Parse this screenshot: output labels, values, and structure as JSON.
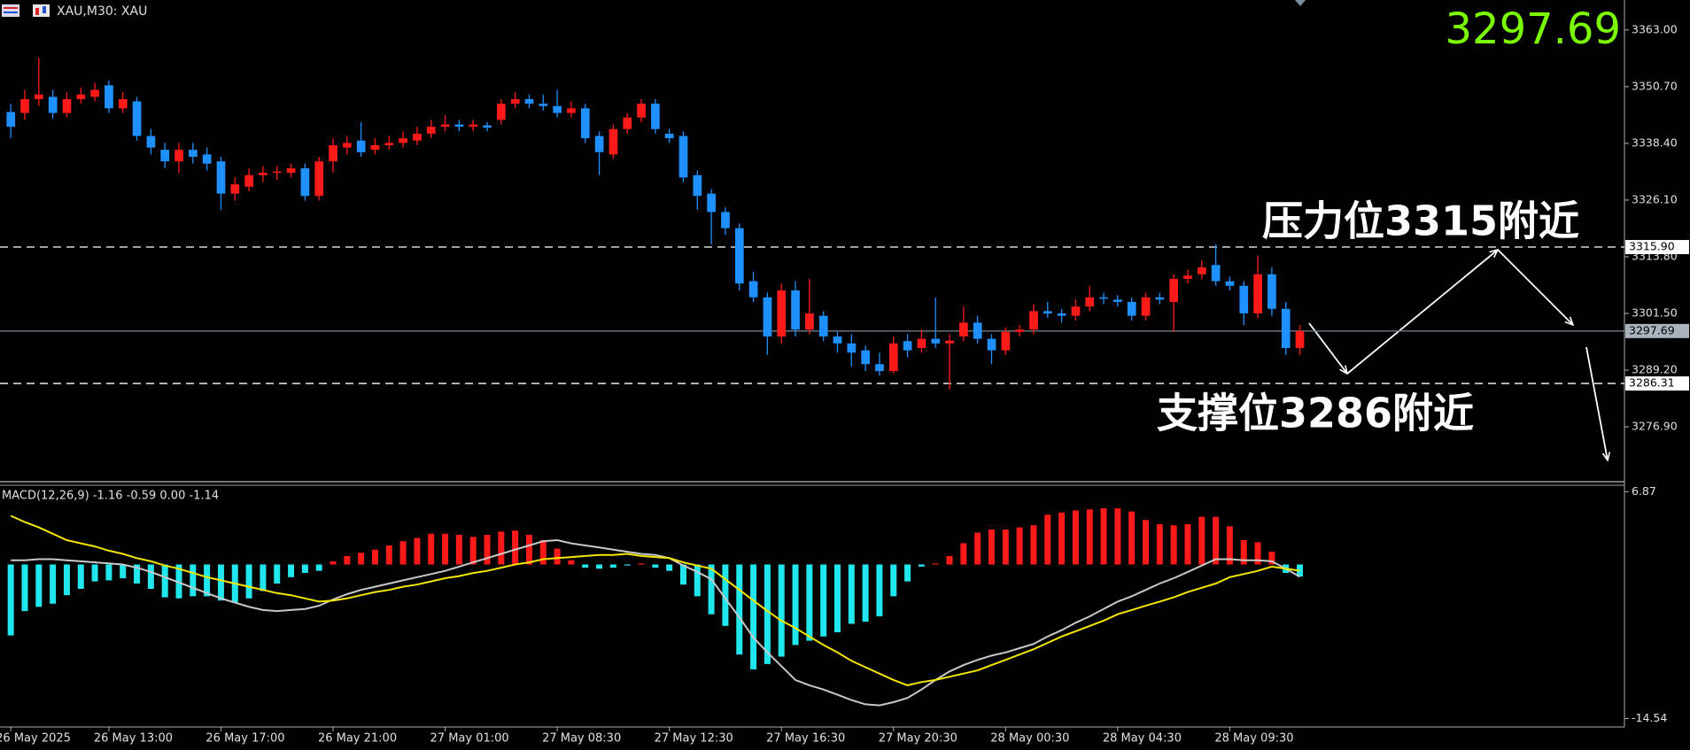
{
  "header": {
    "title": "XAU,M30: XAU"
  },
  "chart_data": [
    {
      "type": "candlestick",
      "categories": [
        "26 May 2025",
        null,
        null,
        null,
        null,
        null,
        null,
        "26 May 13:00",
        null,
        null,
        null,
        null,
        null,
        null,
        null,
        "26 May 17:00",
        null,
        null,
        null,
        null,
        null,
        null,
        null,
        "26 May 21:00",
        null,
        null,
        null,
        null,
        null,
        null,
        null,
        "27 May 01:00",
        null,
        null,
        null,
        null,
        null,
        null,
        null,
        "27 May 08:30",
        null,
        null,
        null,
        null,
        null,
        null,
        null,
        "27 May 12:30",
        null,
        null,
        null,
        null,
        null,
        null,
        null,
        "27 May 16:30",
        null,
        null,
        null,
        null,
        null,
        null,
        null,
        "27 May 20:30",
        null,
        null,
        null,
        null,
        null,
        null,
        null,
        "28 May 00:30",
        null,
        null,
        null,
        null,
        null,
        null,
        null,
        "28 May 04:30",
        null,
        null,
        null,
        null,
        null,
        null,
        null,
        "28 May 09:30",
        null,
        null,
        null,
        null,
        null
      ],
      "open": [
        3345.2,
        3345.0,
        3348.0,
        3348.5,
        3345.0,
        3348.0,
        3348.5,
        3351.0,
        3346.0,
        3347.5,
        3340.0,
        3337.0,
        3334.5,
        3337.0,
        3336.0,
        3334.5,
        3327.5,
        3329.0,
        3331.5,
        3332.0,
        3332.0,
        3333.0,
        3327.0,
        3334.5,
        3337.5,
        3339.0,
        3337.0,
        3338.0,
        3338.5,
        3339.0,
        3340.5,
        3342.0,
        3342.5,
        3342.0,
        3342.3,
        3343.5,
        3347.0,
        3348.0,
        3347.0,
        3346.5,
        3345.0,
        3346.0,
        3340.0,
        3336.0,
        3341.5,
        3344.0,
        3347.0,
        3340.5,
        3340.0,
        3331.5,
        3327.5,
        3323.5,
        3320.0,
        3308.5,
        3305.0,
        3296.5,
        3306.5,
        3298.0,
        3301.0,
        3296.5,
        3295.0,
        3293.5,
        3290.5,
        3289.0,
        3295.5,
        3294.0,
        3296.0,
        3295.0,
        3296.5,
        3299.5,
        3296.0,
        3293.5,
        3297.5,
        3298.0,
        3302.0,
        3301.5,
        3301.0,
        3303.0,
        3305.0,
        3304.5,
        3304.0,
        3301.0,
        3305.0,
        3304.0,
        3309.0,
        3310.0,
        3312.0,
        3308.5,
        3307.5,
        3301.5,
        3310.0,
        3302.5,
        3294.0
      ],
      "high": [
        3347.0,
        3350.0,
        3357.0,
        3350.0,
        3349.5,
        3350.5,
        3351.5,
        3352.0,
        3349.5,
        3348.5,
        3341.5,
        3338.5,
        3338.5,
        3338.5,
        3337.5,
        3335.5,
        3331.0,
        3333.0,
        3333.5,
        3333.5,
        3334.0,
        3334.0,
        3335.5,
        3339.5,
        3340.0,
        3343.0,
        3339.5,
        3340.0,
        3341.0,
        3342.0,
        3343.5,
        3344.5,
        3343.5,
        3343.5,
        3343.0,
        3348.0,
        3349.5,
        3349.0,
        3349.0,
        3350.0,
        3347.5,
        3347.0,
        3341.0,
        3342.5,
        3345.0,
        3348.0,
        3348.0,
        3341.5,
        3341.0,
        3332.5,
        3328.5,
        3324.5,
        3321.0,
        3310.5,
        3306.0,
        3308.0,
        3308.5,
        3309.0,
        3302.0,
        3297.5,
        3297.0,
        3294.5,
        3293.0,
        3296.5,
        3297.0,
        3298.0,
        3305.0,
        3297.0,
        3303.0,
        3301.0,
        3297.0,
        3298.5,
        3299.0,
        3303.5,
        3304.0,
        3302.5,
        3304.5,
        3307.5,
        3306.0,
        3305.5,
        3305.0,
        3306.0,
        3306.0,
        3310.0,
        3311.0,
        3313.0,
        3316.5,
        3309.5,
        3308.5,
        3314.0,
        3311.5,
        3304.0,
        3299.0
      ],
      "low": [
        3339.5,
        3343.5,
        3346.5,
        3343.8,
        3344.0,
        3347.0,
        3347.5,
        3345.0,
        3345.0,
        3339.0,
        3336.0,
        3333.0,
        3332.0,
        3334.0,
        3332.5,
        3324.0,
        3326.0,
        3328.0,
        3330.0,
        3330.5,
        3331.0,
        3326.0,
        3326.0,
        3332.0,
        3336.0,
        3335.5,
        3336.0,
        3337.0,
        3337.5,
        3338.0,
        3339.5,
        3341.0,
        3341.0,
        3341.0,
        3341.0,
        3342.5,
        3346.0,
        3346.0,
        3345.5,
        3344.0,
        3344.0,
        3338.5,
        3331.5,
        3335.0,
        3340.5,
        3343.0,
        3340.5,
        3338.5,
        3330.0,
        3324.0,
        3316.5,
        3318.5,
        3306.5,
        3304.0,
        3292.5,
        3295.0,
        3296.5,
        3297.0,
        3295.5,
        3293.0,
        3290.0,
        3289.0,
        3288.0,
        3288.5,
        3292.0,
        3293.0,
        3294.0,
        3285.0,
        3295.5,
        3295.0,
        3290.5,
        3292.5,
        3296.5,
        3297.0,
        3300.5,
        3299.5,
        3300.0,
        3302.0,
        3303.5,
        3303.0,
        3300.0,
        3300.0,
        3303.5,
        3297.5,
        3308.0,
        3309.0,
        3307.5,
        3306.5,
        3299.0,
        3300.5,
        3301.0,
        3292.5,
        3292.5
      ],
      "close": [
        3342.0,
        3348.0,
        3349.0,
        3345.0,
        3348.0,
        3349.0,
        3350.0,
        3346.0,
        3348.0,
        3340.0,
        3337.5,
        3334.5,
        3337.0,
        3335.5,
        3334.0,
        3327.5,
        3329.5,
        3331.5,
        3332.0,
        3332.3,
        3333.0,
        3327.0,
        3334.5,
        3338.0,
        3338.5,
        3336.5,
        3338.0,
        3338.5,
        3339.5,
        3340.5,
        3342.0,
        3342.5,
        3342.0,
        3342.5,
        3341.8,
        3347.0,
        3348.0,
        3347.0,
        3346.5,
        3345.0,
        3346.0,
        3339.5,
        3336.5,
        3341.5,
        3344.0,
        3347.0,
        3341.5,
        3339.5,
        3331.0,
        3327.0,
        3323.5,
        3320.0,
        3308.0,
        3305.0,
        3296.5,
        3306.5,
        3298.0,
        3301.5,
        3296.5,
        3295.0,
        3293.0,
        3290.5,
        3289.0,
        3295.0,
        3293.5,
        3296.0,
        3295.0,
        3295.6,
        3299.5,
        3296.0,
        3293.5,
        3297.5,
        3298.0,
        3302.0,
        3301.5,
        3301.0,
        3303.0,
        3305.0,
        3304.7,
        3304.0,
        3301.0,
        3305.0,
        3304.5,
        3309.0,
        3309.7,
        3311.5,
        3308.5,
        3307.5,
        3301.5,
        3310.0,
        3302.5,
        3294.0,
        3297.69
      ],
      "up_color": "#ff1a1a",
      "down_color": "#1e90ff",
      "ylim": [
        3265.0,
        3369.5
      ],
      "yticks": [
        {
          "value": 3363.0,
          "label": "3363.00"
        },
        {
          "value": 3350.7,
          "label": "3350.70"
        },
        {
          "value": 3338.4,
          "label": "3338.40"
        },
        {
          "value": 3326.1,
          "label": "3326.10"
        },
        {
          "value": 3313.8,
          "label": "3313.80"
        },
        {
          "value": 3301.5,
          "label": "3301.50"
        },
        {
          "value": 3289.2,
          "label": "3289.20"
        },
        {
          "value": 3276.9,
          "label": "3276.90"
        }
      ],
      "hlines": [
        {
          "value": 3315.9,
          "label": "3315.90",
          "style": "dashed",
          "color": "#ffffff",
          "label_bg": "#ffffff"
        },
        {
          "value": 3297.69,
          "label": "3297.69",
          "style": "solid",
          "color": "#6b7b8c",
          "label_bg": "#a9b2bd"
        },
        {
          "value": 3286.31,
          "label": "3286.31",
          "style": "dashed",
          "color": "#ffffff",
          "label_bg": "#ffffff"
        }
      ],
      "price_color": "#7cfc00",
      "annotations": [
        "压力位3315附近",
        "支撑位3286附近"
      ]
    },
    {
      "type": "macd",
      "title": "MACD(12,26,9) -1.16 -0.59 0.00 -1.14",
      "ylim": [
        -15.34,
        7.48
      ],
      "yticks": [
        6.87,
        -14.54
      ],
      "series": [
        {
          "style": "histogram",
          "positive_color": "#ff1a1a",
          "negative_color": "#22e6ee",
          "values": [
            -6.7,
            -4.4,
            -4.0,
            -3.7,
            -2.9,
            -2.3,
            -1.6,
            -1.5,
            -1.3,
            -1.8,
            -2.3,
            -3.1,
            -3.2,
            -3.0,
            -3.0,
            -3.4,
            -3.6,
            -3.2,
            -2.5,
            -1.8,
            -1.2,
            -0.8,
            -0.6,
            0.3,
            0.8,
            1.1,
            1.4,
            1.8,
            2.2,
            2.5,
            2.9,
            2.9,
            2.8,
            2.6,
            2.8,
            3.1,
            3.2,
            2.8,
            2.3,
            1.5,
            0.4,
            -0.3,
            -0.4,
            -0.3,
            -0.1,
            0.1,
            -0.3,
            -0.6,
            -1.9,
            -3.0,
            -4.7,
            -5.8,
            -8.5,
            -9.9,
            -9.4,
            -8.7,
            -7.6,
            -7.2,
            -6.8,
            -6.4,
            -5.6,
            -5.4,
            -4.9,
            -3.0,
            -1.6,
            -0.2,
            0.1,
            0.8,
            2.0,
            3.0,
            3.3,
            3.3,
            3.5,
            3.7,
            4.7,
            4.9,
            5.1,
            5.2,
            5.3,
            5.3,
            5.0,
            4.2,
            3.8,
            3.7,
            3.8,
            4.5,
            4.5,
            3.6,
            2.3,
            2.1,
            1.2,
            -0.8,
            -1.14
          ]
        },
        {
          "style": "line",
          "color": "#c8c8c8",
          "values": [
            0.4,
            0.4,
            0.5,
            0.5,
            0.4,
            0.3,
            0.2,
            0.1,
            0.0,
            -0.3,
            -0.7,
            -1.2,
            -1.7,
            -2.2,
            -2.7,
            -3.2,
            -3.6,
            -4.0,
            -4.3,
            -4.4,
            -4.3,
            -4.2,
            -3.9,
            -3.3,
            -2.8,
            -2.4,
            -2.1,
            -1.8,
            -1.5,
            -1.2,
            -0.9,
            -0.6,
            -0.2,
            0.2,
            0.6,
            1.0,
            1.4,
            1.8,
            2.2,
            2.3,
            2.0,
            1.8,
            1.6,
            1.4,
            1.2,
            1.0,
            0.9,
            0.6,
            -0.1,
            -0.7,
            -1.4,
            -3.2,
            -5.0,
            -6.9,
            -8.3,
            -9.6,
            -10.9,
            -11.4,
            -11.8,
            -12.3,
            -12.8,
            -13.2,
            -13.3,
            -13.0,
            -12.6,
            -11.8,
            -10.9,
            -10.1,
            -9.5,
            -9.0,
            -8.6,
            -8.3,
            -7.9,
            -7.5,
            -6.8,
            -6.2,
            -5.5,
            -4.9,
            -4.2,
            -3.5,
            -3.0,
            -2.4,
            -1.8,
            -1.3,
            -0.7,
            -0.1,
            0.5,
            0.5,
            0.4,
            0.4,
            0.3,
            -0.4,
            -1.16
          ]
        },
        {
          "style": "line",
          "color": "#f5e600",
          "values": [
            4.6,
            4.0,
            3.5,
            2.9,
            2.3,
            2.0,
            1.7,
            1.3,
            1.0,
            0.6,
            0.3,
            -0.1,
            -0.4,
            -0.8,
            -1.2,
            -1.5,
            -1.8,
            -2.1,
            -2.4,
            -2.7,
            -2.9,
            -3.2,
            -3.5,
            -3.4,
            -3.2,
            -2.9,
            -2.6,
            -2.4,
            -2.1,
            -1.9,
            -1.6,
            -1.3,
            -1.1,
            -0.8,
            -0.6,
            -0.3,
            0.0,
            0.2,
            0.5,
            0.6,
            0.7,
            0.8,
            0.9,
            0.9,
            1.0,
            0.8,
            0.7,
            0.6,
            0.2,
            -0.1,
            -0.4,
            -1.4,
            -2.4,
            -3.4,
            -4.4,
            -5.3,
            -6.0,
            -6.8,
            -7.6,
            -8.3,
            -9.1,
            -9.7,
            -10.3,
            -10.9,
            -11.4,
            -11.1,
            -10.9,
            -10.6,
            -10.3,
            -10.0,
            -9.5,
            -9.0,
            -8.5,
            -8.0,
            -7.4,
            -6.8,
            -6.3,
            -5.8,
            -5.3,
            -4.7,
            -4.3,
            -3.9,
            -3.5,
            -3.1,
            -2.6,
            -2.2,
            -1.8,
            -1.2,
            -0.9,
            -0.6,
            -0.2,
            -0.4,
            -0.59
          ]
        }
      ]
    }
  ]
}
